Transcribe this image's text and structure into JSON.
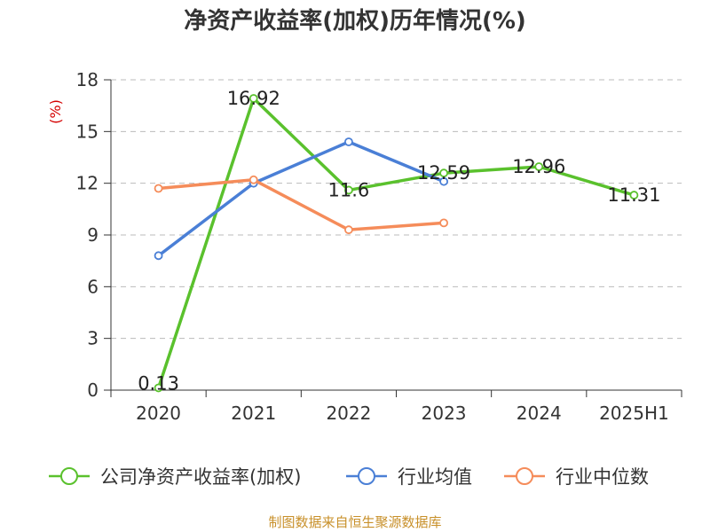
{
  "chart_data": {
    "type": "line",
    "title": "净资产收益率(加权)历年情况(%)",
    "ylabel": "(%)",
    "xlabel": "",
    "ylim": [
      0,
      18
    ],
    "yticks": [
      0,
      3,
      6,
      9,
      12,
      15,
      18
    ],
    "categories": [
      "2020",
      "2021",
      "2022",
      "2023",
      "2024",
      "2025H1"
    ],
    "grid": true,
    "legend_position": "bottom",
    "series": [
      {
        "name": "公司净资产收益率(加权)",
        "color": "#5ac12d",
        "values": [
          0.13,
          16.92,
          11.6,
          12.59,
          12.96,
          11.31
        ],
        "labels": [
          "0.13",
          "16.92",
          "11.6",
          "12.59",
          "12.96",
          "11.31"
        ]
      },
      {
        "name": "行业均值",
        "color": "#4a7fd6",
        "values": [
          7.8,
          12.0,
          14.4,
          12.1,
          null,
          null
        ]
      },
      {
        "name": "行业中位数",
        "color": "#f58c5a",
        "values": [
          11.7,
          12.2,
          9.3,
          9.7,
          null,
          null
        ]
      }
    ]
  },
  "source_text": "制图数据来自恒生聚源数据库"
}
